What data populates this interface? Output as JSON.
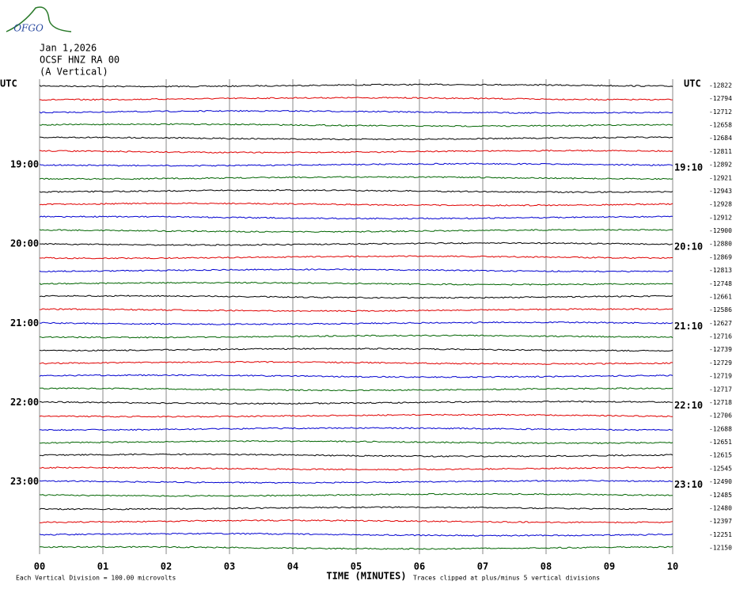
{
  "logo": "OFGO",
  "header": {
    "date": "Jan 1,2026",
    "station": "OCSF HNZ RA 00",
    "component": "(A Vertical)"
  },
  "chart_data": {
    "type": "helicorder",
    "left_axis_label": "UTC",
    "right_axis_label": "UTC",
    "xlabel": "TIME (MINUTES)",
    "xlim": [
      0,
      10
    ],
    "xticks": [
      {
        "value": 0,
        "label": "00"
      },
      {
        "value": 1,
        "label": "01"
      },
      {
        "value": 2,
        "label": "02"
      },
      {
        "value": 3,
        "label": "03"
      },
      {
        "value": 4,
        "label": "04"
      },
      {
        "value": 5,
        "label": "05"
      },
      {
        "value": 6,
        "label": "06"
      },
      {
        "value": 7,
        "label": "07"
      },
      {
        "value": 8,
        "label": "08"
      },
      {
        "value": 9,
        "label": "09"
      },
      {
        "value": 10,
        "label": "10"
      }
    ],
    "colors": [
      "#000000",
      "#e00000",
      "#0000d0",
      "#006400"
    ],
    "left_labels": [
      null,
      null,
      null,
      null,
      null,
      null,
      "19:00",
      null,
      null,
      null,
      null,
      null,
      "20:00",
      null,
      null,
      null,
      null,
      null,
      "21:00",
      null,
      null,
      null,
      null,
      null,
      "22:00",
      null,
      null,
      null,
      null,
      null,
      "23:00",
      null,
      null,
      null,
      null,
      null
    ],
    "right_labels": [
      null,
      null,
      null,
      null,
      null,
      null,
      "19:10",
      null,
      null,
      null,
      null,
      null,
      "20:10",
      null,
      null,
      null,
      null,
      null,
      "21:10",
      null,
      null,
      null,
      null,
      null,
      "22:10",
      null,
      null,
      null,
      null,
      null,
      "23:10",
      null,
      null,
      null,
      null,
      null
    ],
    "values": [
      -12822,
      -12794,
      -12712,
      -12658,
      -12684,
      -12811,
      -12892,
      -12921,
      -12943,
      -12928,
      -12912,
      -12900,
      -12880,
      -12869,
      -12813,
      -12748,
      -12661,
      -12586,
      -12627,
      -12716,
      -12739,
      -12729,
      -12719,
      -12717,
      -12718,
      -12706,
      -12688,
      -12651,
      -12615,
      -12545,
      -12490,
      -12485,
      -12480,
      -12397,
      -12251,
      -12150
    ],
    "footnote_left": "Each Vertical Division =  100.00 microvolts",
    "footnote_right": "Traces clipped at plus/minus 5 vertical divisions"
  }
}
